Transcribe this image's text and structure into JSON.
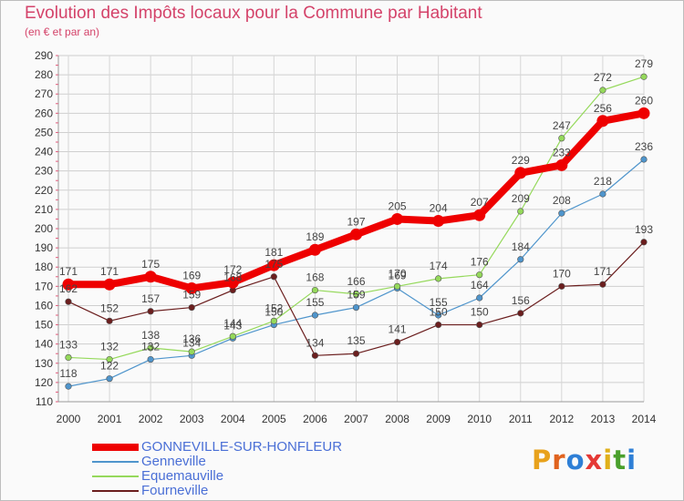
{
  "title": "Evolution des Impôts locaux pour la Commune par Habitant",
  "subtitle": "(en € et par an)",
  "logo": {
    "text": "Proxiti",
    "colors": [
      "#e8a21c",
      "#e0631f",
      "#2e7fd6",
      "#e53935",
      "#e0b01a",
      "#4aa02c",
      "#2e7fd6"
    ]
  },
  "chart_data": {
    "type": "line",
    "title": "Evolution des Impôts locaux pour la Commune par Habitant",
    "ylabel": "(en € et par an)",
    "xlabel": "",
    "x": [
      "2000",
      "2001",
      "2002",
      "2003",
      "2004",
      "2005",
      "2006",
      "2007",
      "2008",
      "2009",
      "2010",
      "2011",
      "2012",
      "2013",
      "2014"
    ],
    "yticks": [
      110,
      120,
      130,
      140,
      150,
      160,
      170,
      180,
      190,
      200,
      210,
      220,
      230,
      240,
      250,
      260,
      270,
      280,
      290
    ],
    "ylim": [
      110,
      290
    ],
    "grid": true,
    "legend_position": "bottom-left",
    "series": [
      {
        "name": "Genneville",
        "color": "#4f95cc",
        "values": [
          118,
          122,
          132,
          134,
          143,
          150,
          155,
          159,
          169,
          155,
          164,
          184,
          208,
          218,
          236
        ]
      },
      {
        "name": "Equemauville",
        "color": "#95d95b",
        "values": [
          133,
          132,
          138,
          136,
          144,
          152,
          168,
          166,
          170,
          174,
          176,
          209,
          247,
          272,
          279
        ]
      },
      {
        "name": "Fourneville",
        "color": "#6b1e1e",
        "values": [
          162,
          152,
          157,
          159,
          168,
          175,
          134,
          135,
          141,
          150,
          150,
          156,
          170,
          171,
          193
        ]
      },
      {
        "name": "GONNEVILLE-SUR-HONFLEUR",
        "color": "#ee0000",
        "values": [
          171,
          171,
          175,
          169,
          172,
          181,
          189,
          197,
          205,
          204,
          207,
          229,
          233,
          256,
          260
        ]
      }
    ]
  }
}
